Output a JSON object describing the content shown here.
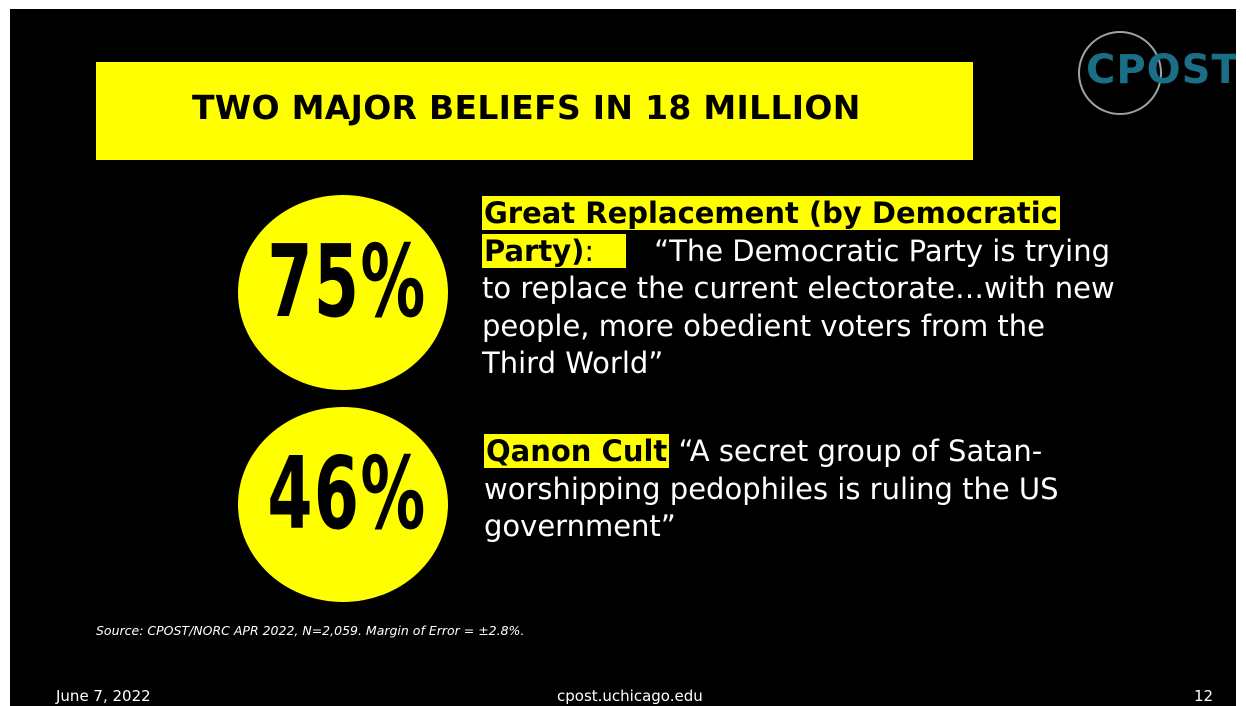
{
  "title": "TWO MAJOR BELIEFS IN 18 MILLION",
  "logo": {
    "text": "CPOST",
    "icon": "globe-icon"
  },
  "beliefs": [
    {
      "percent": "75%",
      "label_line1": "Great Replacement (by Democratic",
      "label_line2": "Party)",
      "separator": ":",
      "quote": "“The Democratic Party is trying to replace the current electorate…with new people, more obedient voters from the Third World”"
    },
    {
      "percent": "46%",
      "label": "Qanon Cult",
      "quote": "“A secret group of Satan-worshipping pedophiles is ruling the US government”"
    }
  ],
  "source": "Source: CPOST/NORC APR 2022, N=2,059. Margin of Error =    ±2.8%.",
  "footer": {
    "date": "June 7, 2022",
    "url": "cpost.uchicago.edu",
    "page": "12"
  },
  "colors": {
    "accent": "#ffff00",
    "background": "#000000",
    "logo": "#1a6e86"
  }
}
